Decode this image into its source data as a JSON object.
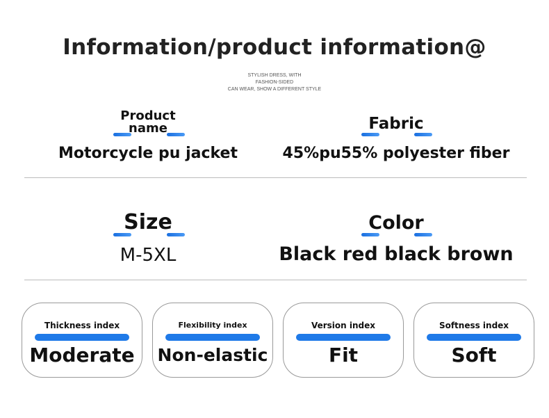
{
  "header": {
    "title": "Information/product information@",
    "subtitle_lines": [
      "STYLISH DRESS, WITH",
      "FASHION-SIDED",
      "CAN WEAR, SHOW A DIFFERENT STYLE"
    ]
  },
  "specs": [
    {
      "label_lines": [
        "Product",
        "name"
      ],
      "value": "Motorcycle pu jacket"
    },
    {
      "label": "Fabric",
      "value": "45%pu55% polyester fiber"
    },
    {
      "label": "Size",
      "value": "M-5XL"
    },
    {
      "label": "Color",
      "value": "Black red black brown"
    }
  ],
  "indices": [
    {
      "label": "Thickness index",
      "value": "Moderate"
    },
    {
      "label": "Flexibility index",
      "value": "Non-elastic"
    },
    {
      "label": "Version index",
      "value": "Fit"
    },
    {
      "label": "Softness index",
      "value": "Soft"
    }
  ],
  "colors": {
    "accent": "#1f7ae8",
    "text": "#111111",
    "border": "#999999"
  }
}
